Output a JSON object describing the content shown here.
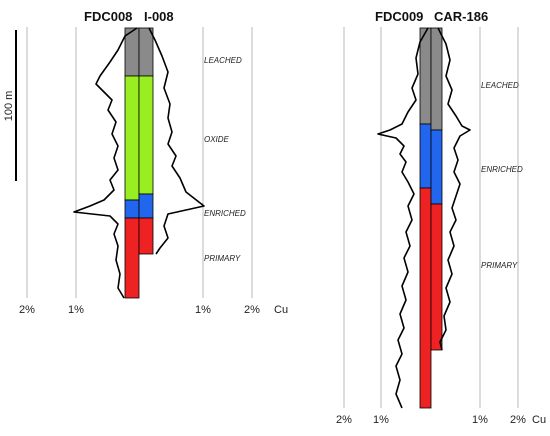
{
  "colors": {
    "leached": "#8a8a8a",
    "oxide": "#99ee22",
    "enriched": "#2266ee",
    "primary": "#ee2222"
  },
  "scale_bar": {
    "label": "100 m"
  },
  "holes": [
    {
      "title_left": "FDC008",
      "title_right": "I-008",
      "zones": {
        "leached": "LEACHED",
        "oxide": "OXIDE",
        "enriched": "ENRICHED",
        "primary": "PRIMARY"
      },
      "axis": {
        "left_ticks": [
          "2%",
          "1%"
        ],
        "right_ticks": [
          "1%",
          "2%"
        ],
        "unit": "Cu"
      }
    },
    {
      "title_left": "FDC009",
      "title_right": "CAR-186",
      "zones": {
        "leached": "LEACHED",
        "enriched": "ENRICHED",
        "primary": "PRIMARY"
      },
      "axis": {
        "left_ticks": [
          "2%",
          "1%"
        ],
        "right_ticks": [
          "1%",
          "2%"
        ],
        "unit": "Cu"
      }
    }
  ]
}
